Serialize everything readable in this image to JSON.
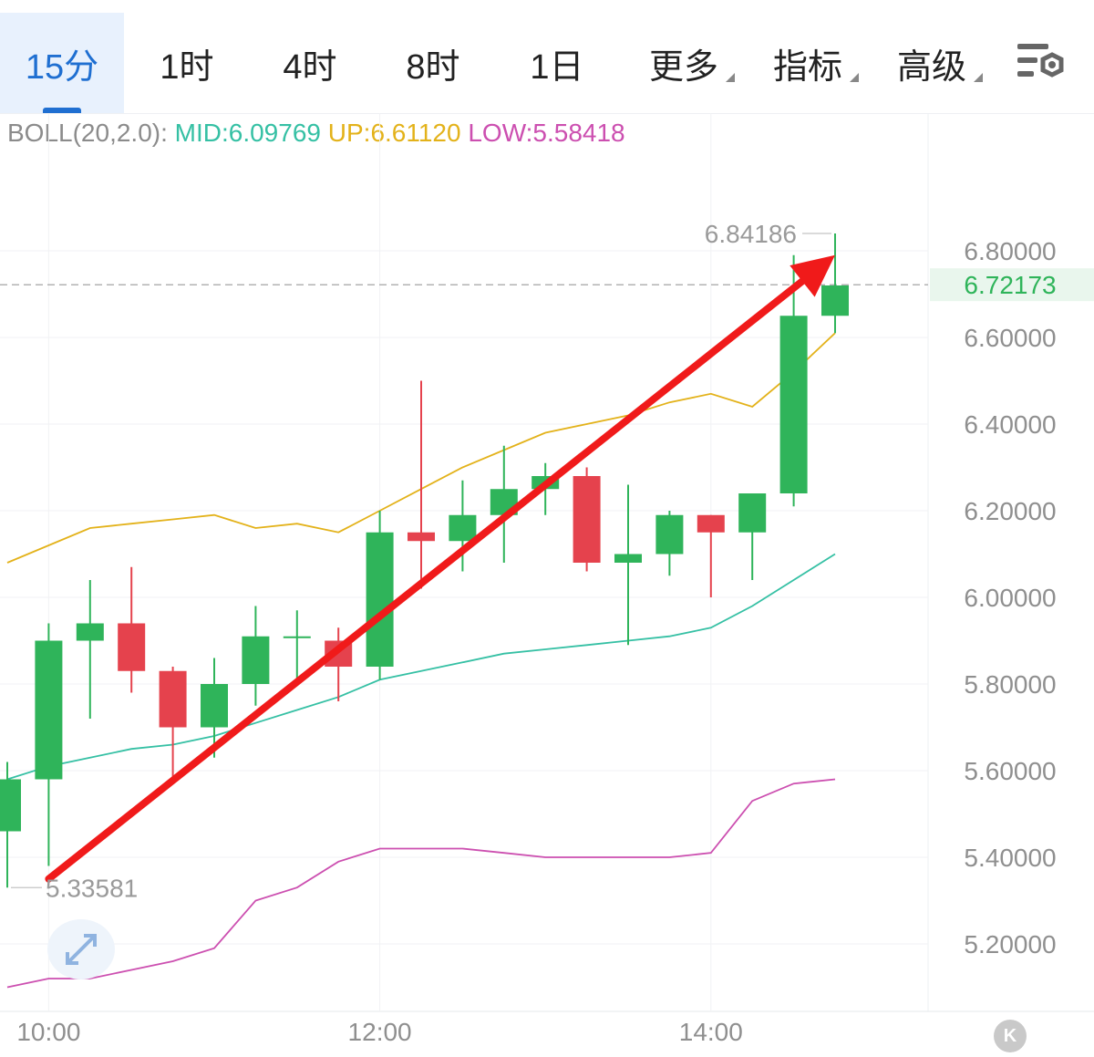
{
  "toolbar": {
    "tabs": [
      {
        "label": "15分",
        "active": true
      },
      {
        "label": "1时"
      },
      {
        "label": "4时"
      },
      {
        "label": "8时"
      },
      {
        "label": "1日"
      },
      {
        "label": "更多",
        "dropdown": true
      },
      {
        "label": "指标",
        "dropdown": true
      },
      {
        "label": "高级",
        "dropdown": true
      }
    ],
    "settings_icon": "chart-settings-gear-icon"
  },
  "indicator": {
    "name": "BOLL(20,2.0):",
    "mid": "MID:6.09769",
    "up": "UP:6.61120",
    "low": "LOW:5.58418"
  },
  "current_price": "6.72173",
  "high_label": "6.84186",
  "low_label": "5.33581",
  "corner_button": "K",
  "colors": {
    "active_tab": "#1f6fd1",
    "up_candle": "#2fb45a",
    "down_candle": "#e5424d",
    "mid_line": "#35c0a4",
    "upper_band": "#e3b21a",
    "lower_band": "#cc4fb0",
    "arrow": "#f01a1a"
  },
  "chart_data": {
    "type": "candlestick",
    "y_ticks": [
      "6.80000",
      "6.60000",
      "6.40000",
      "6.20000",
      "6.00000",
      "5.80000",
      "5.60000",
      "5.40000",
      "5.20000"
    ],
    "y_tick_values": [
      6.8,
      6.6,
      6.4,
      6.2,
      6.0,
      5.8,
      5.6,
      5.4,
      5.2
    ],
    "x_ticks": [
      "10:00",
      "12:00",
      "14:00"
    ],
    "x_tick_candle_index": [
      1,
      9,
      17
    ],
    "ylim": [
      5.06,
      6.96
    ],
    "candles": [
      {
        "o": 5.46,
        "c": 5.58,
        "h": 5.62,
        "l": 5.33
      },
      {
        "o": 5.58,
        "c": 5.9,
        "h": 5.94,
        "l": 5.38
      },
      {
        "o": 5.9,
        "c": 5.94,
        "h": 6.04,
        "l": 5.72
      },
      {
        "o": 5.94,
        "c": 5.83,
        "h": 6.07,
        "l": 5.78
      },
      {
        "o": 5.83,
        "c": 5.7,
        "h": 5.84,
        "l": 5.58
      },
      {
        "o": 5.7,
        "c": 5.8,
        "h": 5.86,
        "l": 5.63
      },
      {
        "o": 5.8,
        "c": 5.91,
        "h": 5.98,
        "l": 5.75
      },
      {
        "o": 5.91,
        "c": 5.91,
        "h": 5.97,
        "l": 5.81
      },
      {
        "o": 5.9,
        "c": 5.84,
        "h": 5.93,
        "l": 5.76
      },
      {
        "o": 5.84,
        "c": 6.15,
        "h": 6.2,
        "l": 5.81
      },
      {
        "o": 6.15,
        "c": 6.13,
        "h": 6.5,
        "l": 6.02
      },
      {
        "o": 6.13,
        "c": 6.19,
        "h": 6.27,
        "l": 6.06
      },
      {
        "o": 6.19,
        "c": 6.25,
        "h": 6.35,
        "l": 6.08
      },
      {
        "o": 6.25,
        "c": 6.28,
        "h": 6.31,
        "l": 6.19
      },
      {
        "o": 6.28,
        "c": 6.08,
        "h": 6.3,
        "l": 6.06
      },
      {
        "o": 6.08,
        "c": 6.1,
        "h": 6.26,
        "l": 5.89
      },
      {
        "o": 6.1,
        "c": 6.19,
        "h": 6.2,
        "l": 6.05
      },
      {
        "o": 6.19,
        "c": 6.15,
        "h": 6.19,
        "l": 6.0
      },
      {
        "o": 6.15,
        "c": 6.24,
        "h": 6.24,
        "l": 6.04
      },
      {
        "o": 6.24,
        "c": 6.65,
        "h": 6.79,
        "l": 6.21
      },
      {
        "o": 6.65,
        "c": 6.72,
        "h": 6.84,
        "l": 6.61
      }
    ],
    "boll_up": [
      6.08,
      6.12,
      6.16,
      6.17,
      6.18,
      6.19,
      6.16,
      6.17,
      6.15,
      6.2,
      6.25,
      6.3,
      6.34,
      6.38,
      6.4,
      6.42,
      6.45,
      6.47,
      6.44,
      6.52,
      6.61
    ],
    "boll_mid": [
      5.58,
      5.61,
      5.63,
      5.65,
      5.66,
      5.68,
      5.71,
      5.74,
      5.77,
      5.81,
      5.83,
      5.85,
      5.87,
      5.88,
      5.89,
      5.9,
      5.91,
      5.93,
      5.98,
      6.04,
      6.1
    ],
    "boll_low": [
      5.1,
      5.12,
      5.12,
      5.14,
      5.16,
      5.19,
      5.3,
      5.33,
      5.39,
      5.42,
      5.42,
      5.42,
      5.41,
      5.4,
      5.4,
      5.4,
      5.4,
      5.41,
      5.53,
      5.57,
      5.58
    ],
    "price_line": 6.72173,
    "trend_arrow": {
      "from_index": 1,
      "from_value": 5.35,
      "to_index": 20,
      "to_value": 6.79
    }
  }
}
